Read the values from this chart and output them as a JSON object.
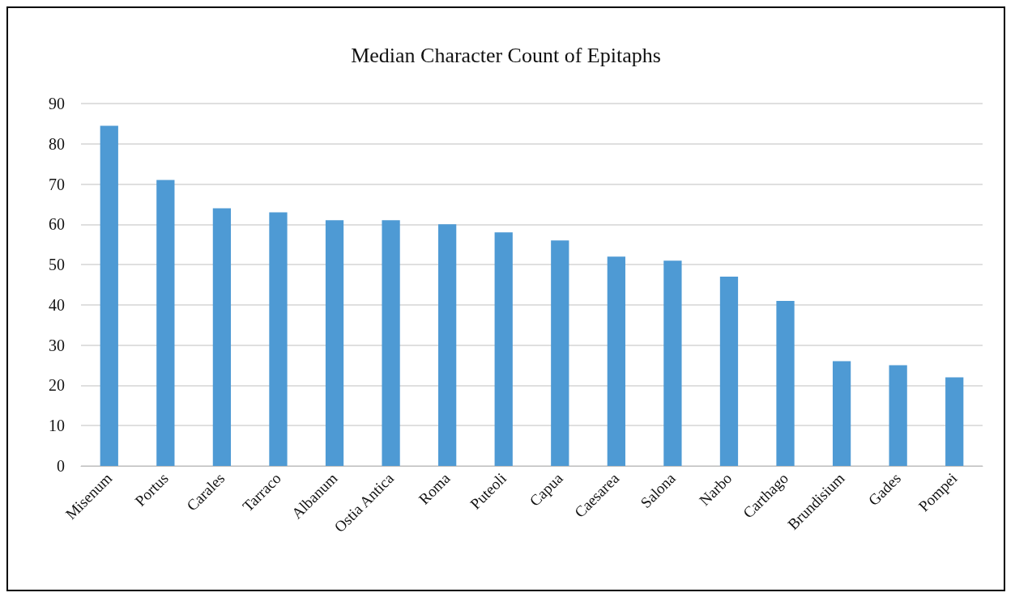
{
  "chart_data": {
    "type": "bar",
    "title": "Median Character Count of Epitaphs",
    "categories": [
      "Misenum",
      "Portus",
      "Carales",
      "Tarraco",
      "Albanum",
      "Ostia Antica",
      "Roma",
      "Puteoli",
      "Capua",
      "Caesarea",
      "Salona",
      "Narbo",
      "Carthago",
      "Brundisium",
      "Gades",
      "Pompei"
    ],
    "values": [
      84.5,
      71,
      64,
      63,
      61,
      61,
      60,
      58,
      56,
      52,
      51,
      47,
      41,
      26,
      25,
      22
    ],
    "color": "#4e9ad4",
    "ylim": [
      0,
      90
    ],
    "yticks": [
      0,
      10,
      20,
      30,
      40,
      50,
      60,
      70,
      80,
      90
    ],
    "grid": "y"
  }
}
